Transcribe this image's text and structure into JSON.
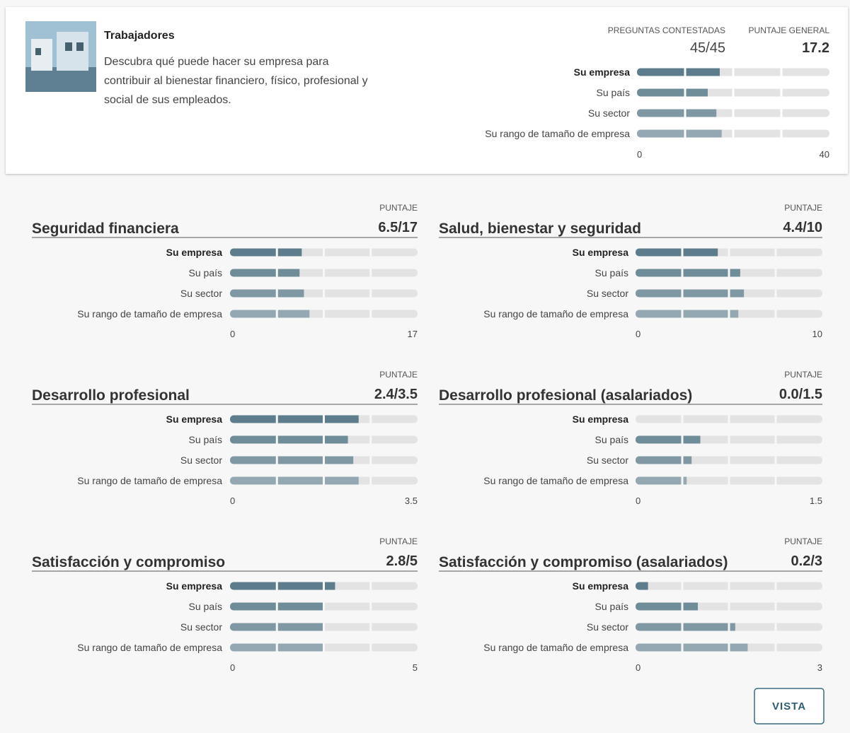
{
  "header": {
    "title": "Trabajadores",
    "description": [
      "Descubra qué puede hacer su empresa para",
      "contribuir al bienestar financiero, físico, profesional y",
      "social de sus empleados."
    ]
  },
  "overview": {
    "answered_label": "PREGUNTAS CONTESTADAS",
    "answered": "45/45",
    "score_label": "PUNTAJE GENERAL",
    "score": "17.2"
  },
  "chart_data": [
    {
      "type": "bar",
      "orientation": "horizontal",
      "categories": [
        "Su empresa",
        "Su país",
        "Su sector",
        "Su rango de tamaño de empresa"
      ],
      "values": [
        17.2,
        14.7,
        16.5,
        17.6
      ],
      "colors": [
        "#5e7d8c",
        "#6f8c99",
        "#7f98a4",
        "#93a8b2"
      ],
      "xlim": [
        0,
        40
      ],
      "xticks": [
        0,
        40
      ]
    },
    {
      "type": "bar",
      "orientation": "horizontal",
      "title": "Seguridad financiera",
      "score_label": "PUNTAJE",
      "score": "6.5/17",
      "categories": [
        "Su empresa",
        "Su país",
        "Su sector",
        "Su rango de tamaño de empresa"
      ],
      "values": [
        6.5,
        6.3,
        6.7,
        7.2
      ],
      "colors": [
        "#5e7d8c",
        "#6f8c99",
        "#7f98a4",
        "#93a8b2"
      ],
      "xlim": [
        0,
        17
      ],
      "xticks": [
        0,
        17
      ]
    },
    {
      "type": "bar",
      "orientation": "horizontal",
      "title": "Salud, bienestar y seguridad",
      "score_label": "PUNTAJE",
      "score": "4.4/10",
      "categories": [
        "Su empresa",
        "Su país",
        "Su sector",
        "Su rango de tamaño de empresa"
      ],
      "values": [
        4.4,
        5.6,
        5.8,
        5.5
      ],
      "colors": [
        "#5e7d8c",
        "#6f8c99",
        "#7f98a4",
        "#93a8b2"
      ],
      "xlim": [
        0,
        10
      ],
      "xticks": [
        0,
        10
      ]
    },
    {
      "type": "bar",
      "orientation": "horizontal",
      "title": "Desarrollo profesional",
      "score_label": "PUNTAJE",
      "score": "2.4/3.5",
      "categories": [
        "Su empresa",
        "Su país",
        "Su sector",
        "Su rango de tamaño de empresa"
      ],
      "values": [
        2.4,
        2.2,
        2.3,
        2.4
      ],
      "colors": [
        "#5e7d8c",
        "#6f8c99",
        "#7f98a4",
        "#93a8b2"
      ],
      "xlim": [
        0,
        3.5
      ],
      "xticks": [
        0,
        3.5
      ]
    },
    {
      "type": "bar",
      "orientation": "horizontal",
      "title": "Desarrollo profesional (asalariados)",
      "score_label": "PUNTAJE",
      "score": "0.0/1.5",
      "categories": [
        "Su empresa",
        "Su país",
        "Su sector",
        "Su rango de tamaño de empresa"
      ],
      "values": [
        0.0,
        0.52,
        0.45,
        0.41
      ],
      "colors": [
        "#5e7d8c",
        "#6f8c99",
        "#7f98a4",
        "#93a8b2"
      ],
      "xlim": [
        0,
        1.5
      ],
      "xticks": [
        0,
        1.5
      ]
    },
    {
      "type": "bar",
      "orientation": "horizontal",
      "title": "Satisfacción y compromiso",
      "score_label": "PUNTAJE",
      "score": "2.8/5",
      "categories": [
        "Su empresa",
        "Su país",
        "Su sector",
        "Su rango de tamaño de empresa"
      ],
      "values": [
        2.8,
        2.5,
        2.5,
        2.5
      ],
      "colors": [
        "#5e7d8c",
        "#6f8c99",
        "#7f98a4",
        "#93a8b2"
      ],
      "xlim": [
        0,
        5
      ],
      "xticks": [
        0,
        5
      ]
    },
    {
      "type": "bar",
      "orientation": "horizontal",
      "title": "Satisfacción y compromiso (asalariados)",
      "score_label": "PUNTAJE",
      "score": "0.2/3",
      "categories": [
        "Su empresa",
        "Su país",
        "Su sector",
        "Su rango de tamaño de empresa"
      ],
      "values": [
        0.2,
        1.0,
        1.6,
        1.8
      ],
      "colors": [
        "#5e7d8c",
        "#6f8c99",
        "#7f98a4",
        "#93a8b2"
      ],
      "xlim": [
        0,
        3
      ],
      "xticks": [
        0,
        3
      ]
    }
  ],
  "button": "VISTA"
}
